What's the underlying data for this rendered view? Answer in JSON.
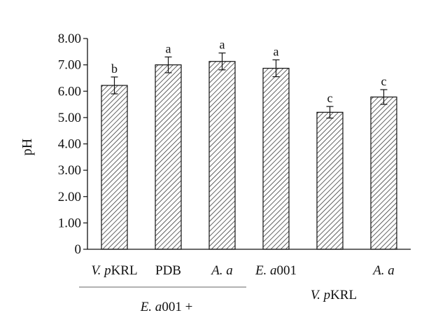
{
  "chart_data": {
    "type": "bar",
    "title": "",
    "ylabel": "pH",
    "xlabel": "",
    "ylim": [
      0,
      8
    ],
    "yticks": [
      "0",
      "1.00",
      "2.00",
      "3.00",
      "4.00",
      "5.00",
      "6.00",
      "7.00",
      "8.00"
    ],
    "bar_fill": "diagonal hatch",
    "bar_color": "#ffffff",
    "hatch_color": "#222222",
    "grid": false,
    "categories": [
      {
        "italic": "V. p",
        "plain": "KRL"
      },
      {
        "italic": "",
        "plain": "PDB"
      },
      {
        "italic": "A. a",
        "plain": ""
      },
      {
        "italic": "E. a",
        "plain": "001"
      },
      {
        "italic": "",
        "plain": ""
      },
      {
        "italic": "A. a",
        "plain": ""
      }
    ],
    "values": [
      6.22,
      7.0,
      7.13,
      6.87,
      5.2,
      5.78
    ],
    "errors": [
      0.32,
      0.3,
      0.32,
      0.32,
      0.22,
      0.28
    ],
    "significance": [
      "b",
      "a",
      "a",
      "a",
      "c",
      "c"
    ],
    "groups": [
      {
        "label_italic": "E. a",
        "label_plain": "001 +"
      },
      {
        "label_italic": "V. p",
        "label_plain": "KRL"
      }
    ]
  }
}
